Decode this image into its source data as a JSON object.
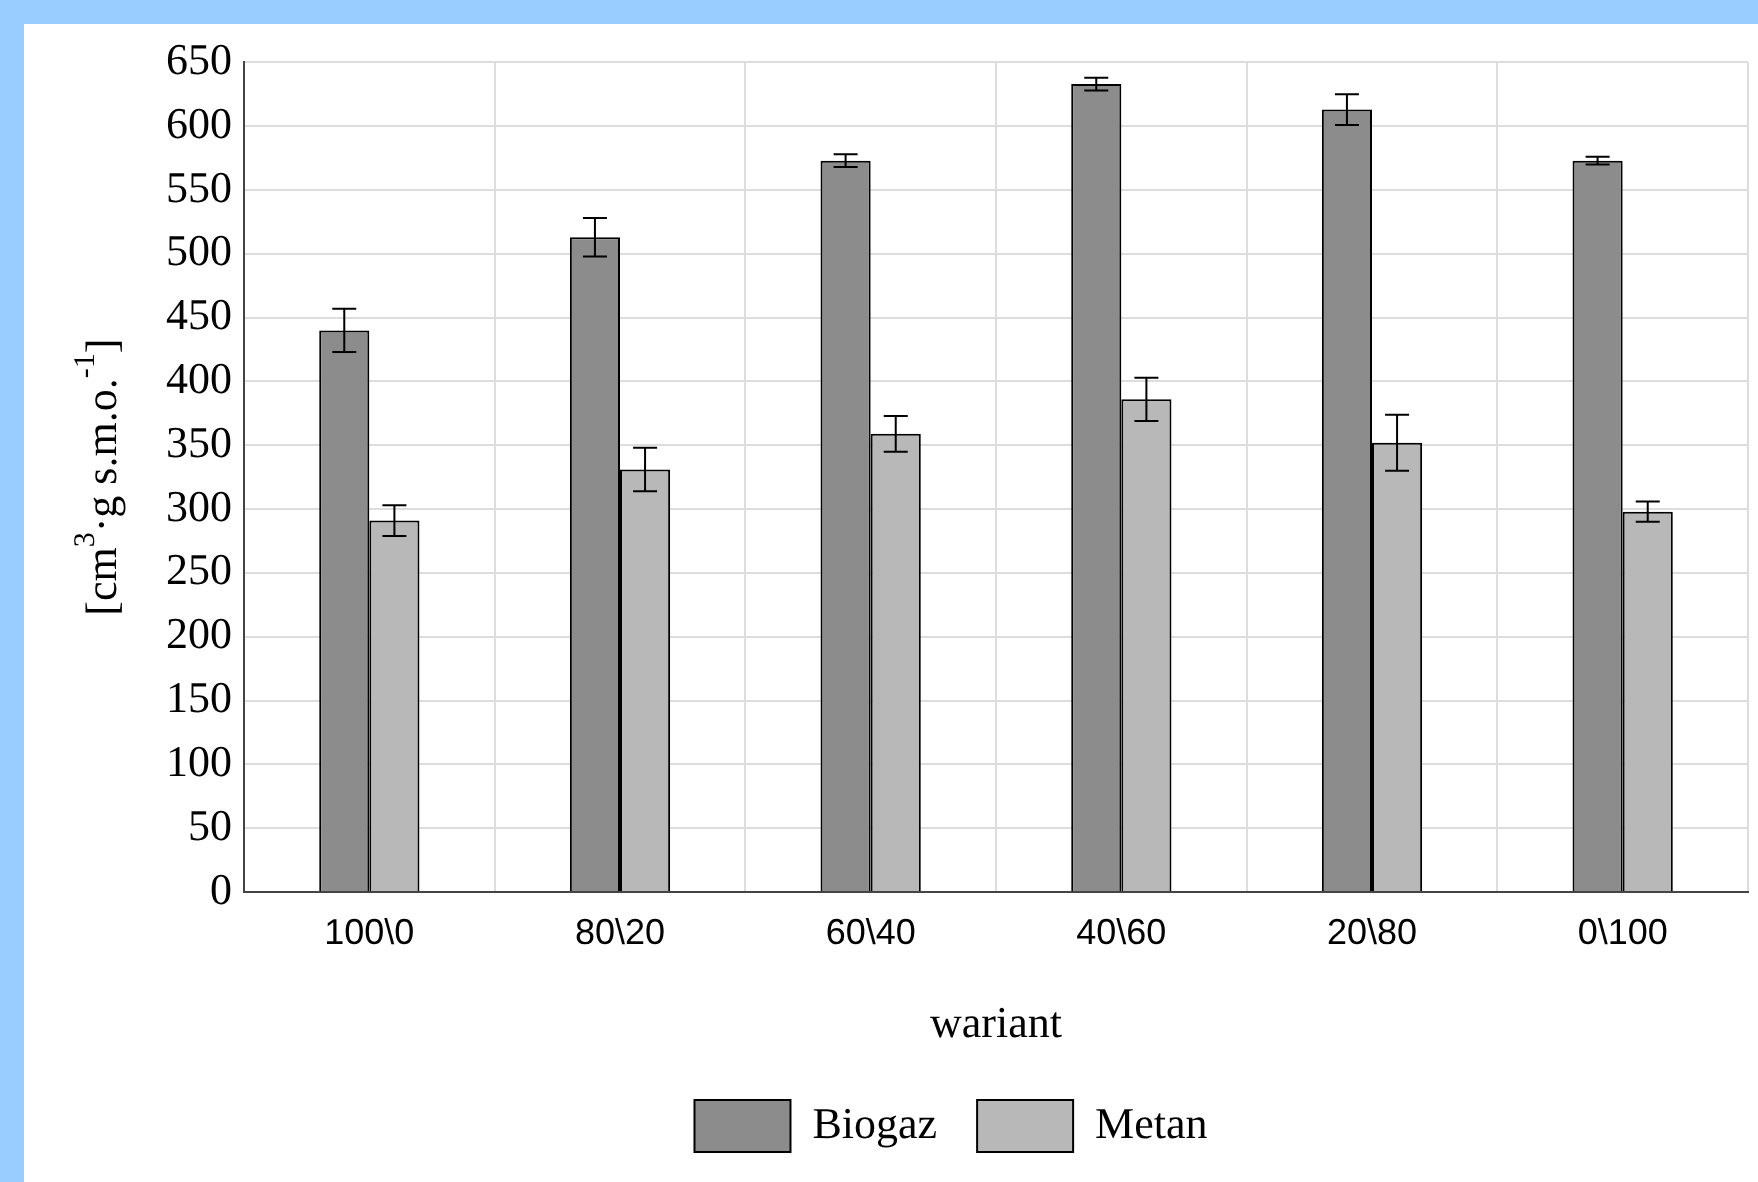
{
  "chart_data": {
    "type": "bar",
    "xlabel": "wariant",
    "ylabel": "[cm$^{3}$·g s.m.o.$^{-1}$]",
    "categories": [
      "100\\0",
      "80\\20",
      "60\\40",
      "40\\60",
      "20\\80",
      "0\\100"
    ],
    "series": [
      {
        "name": "Biogaz",
        "color": "#8c8c8c",
        "values": [
          440,
          513,
          573,
          633,
          613,
          573
        ],
        "errors": [
          17,
          15,
          5,
          5,
          12,
          3
        ]
      },
      {
        "name": "Metan",
        "color": "#b8b8b8",
        "values": [
          291,
          331,
          359,
          386,
          352,
          298
        ],
        "errors": [
          12,
          17,
          14,
          17,
          22,
          8
        ]
      }
    ],
    "ylim": [
      0,
      650
    ],
    "yticks": [
      0,
      50,
      100,
      150,
      200,
      250,
      300,
      350,
      400,
      450,
      500,
      550,
      600,
      650
    ],
    "grid": true,
    "legend": "bottom"
  }
}
